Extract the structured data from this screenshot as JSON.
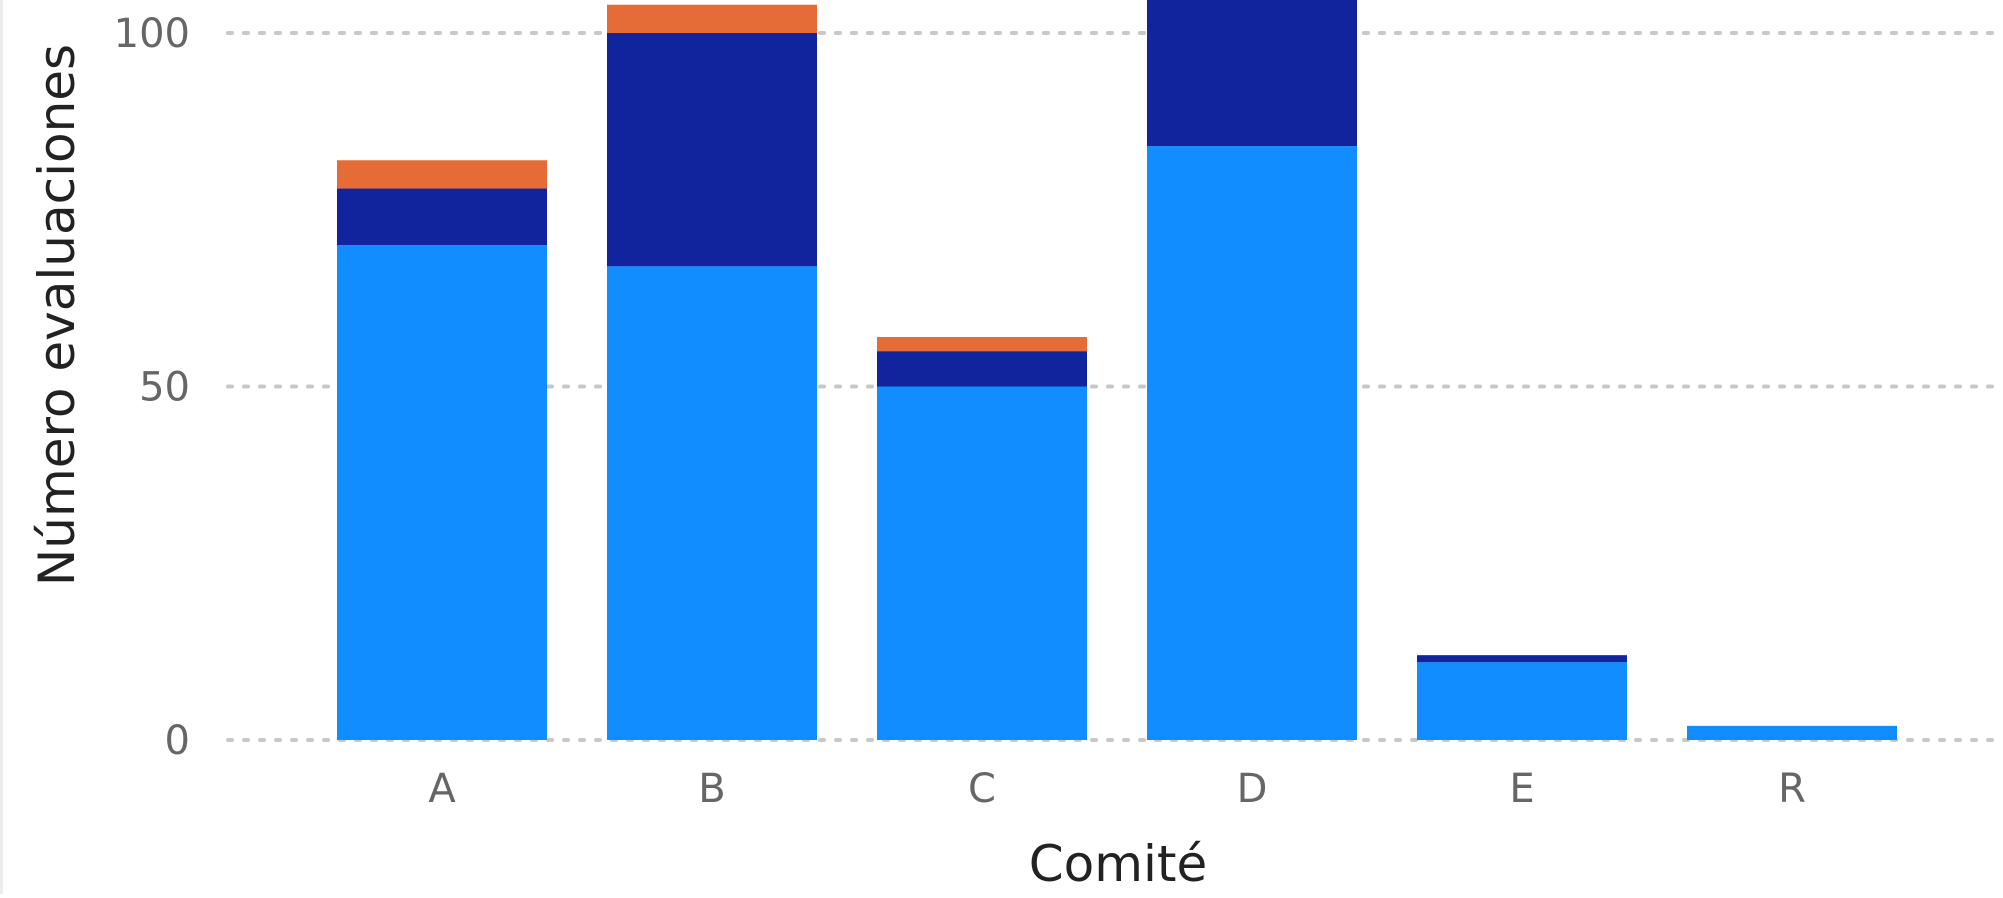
{
  "chart_data": {
    "type": "bar",
    "stacked": true,
    "title": "",
    "xlabel": "Comité",
    "ylabel": "Número evaluaciones",
    "categories": [
      "A",
      "B",
      "C",
      "D",
      "E",
      "R"
    ],
    "series": [
      {
        "color": "#118DFF",
        "values": [
          70,
          67,
          50,
          84,
          11,
          2
        ]
      },
      {
        "color": "#12239E",
        "values": [
          8,
          33,
          5,
          22,
          1,
          0
        ]
      },
      {
        "color": "#E66C37",
        "values": [
          4,
          4,
          2,
          0,
          0,
          0
        ]
      }
    ],
    "yticks": [
      0,
      50,
      100
    ],
    "ylim": [
      0,
      104.5
    ],
    "grid": true,
    "legend": "none"
  }
}
